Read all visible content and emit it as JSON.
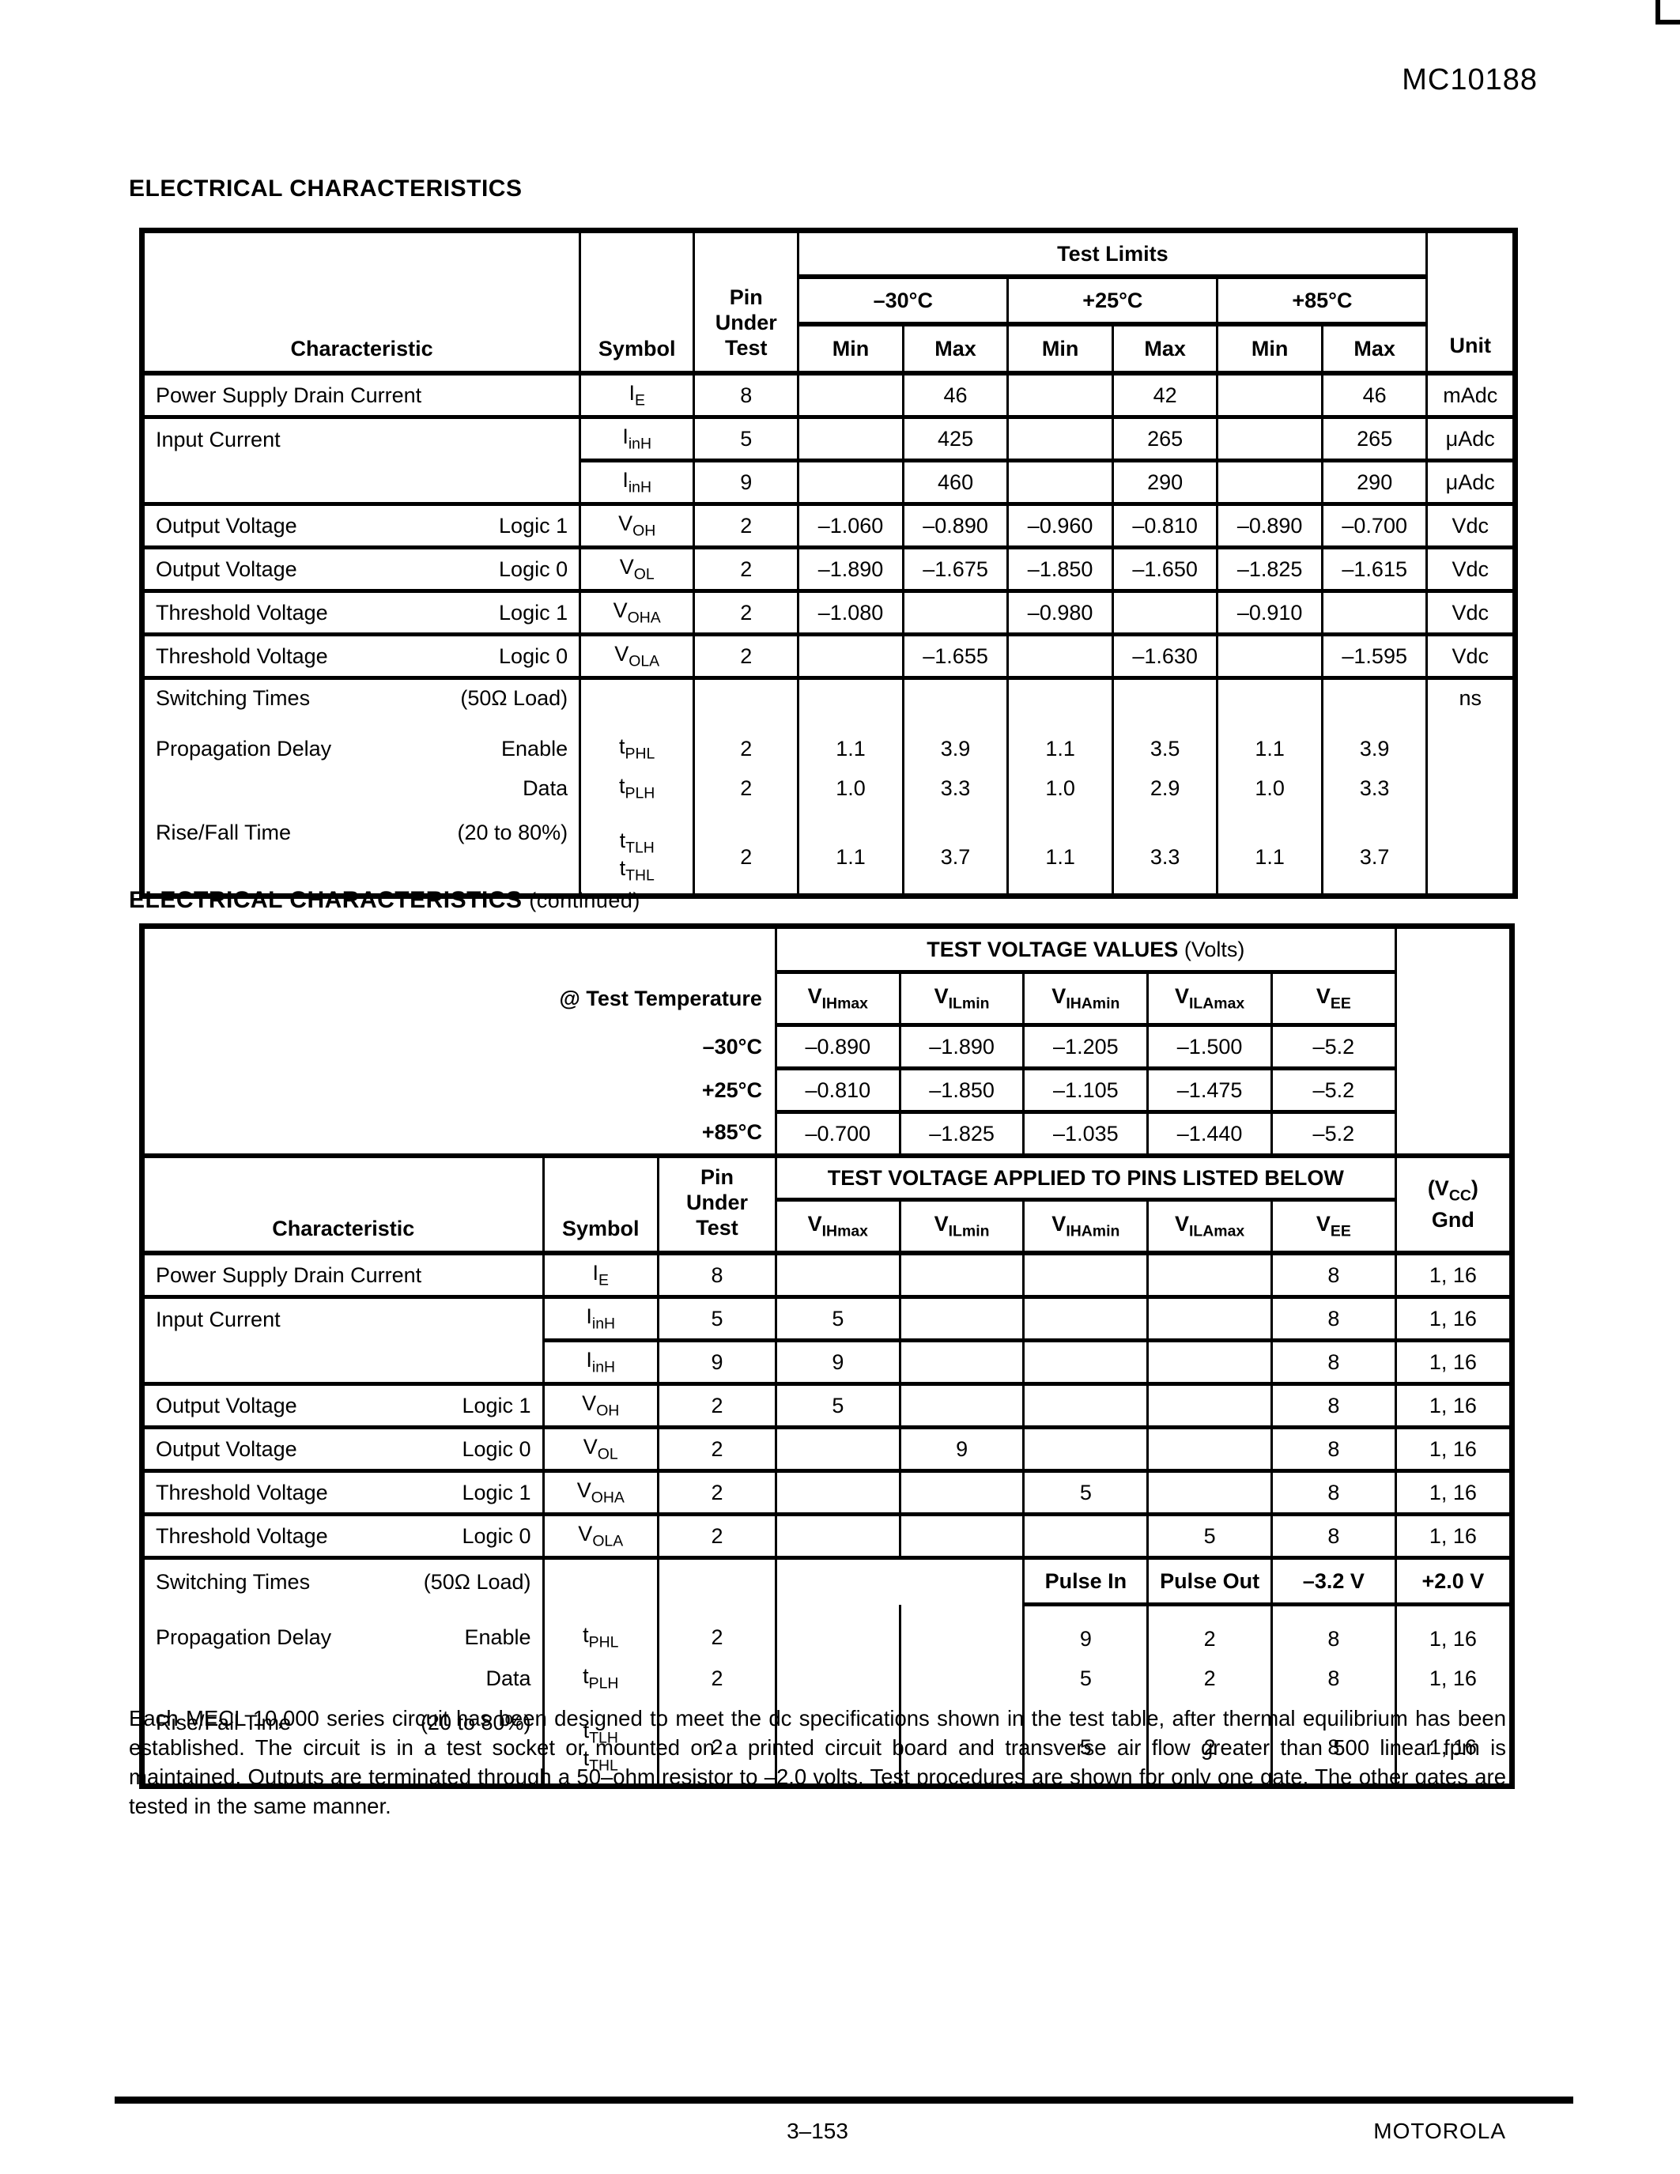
{
  "part_number": "MC10188",
  "s1": {
    "title": "ELECTRICAL CHARACTERISTICS",
    "h": {
      "characteristic": "Characteristic",
      "symbol": "Symbol",
      "pin": [
        "Pin",
        "Under",
        "Test"
      ],
      "limits": "Test Limits",
      "temps": [
        "–30°C",
        "+25°C",
        "+85°C"
      ],
      "mm": [
        "Min",
        "Max",
        "Min",
        "Max",
        "Min",
        "Max"
      ],
      "unit": "Unit"
    },
    "sections": [
      [
        {
          "c": "Power Supply Drain Current",
          "sym": [
            [
              "I",
              "E"
            ]
          ],
          "pin": "8",
          "v": [
            "",
            "46",
            "",
            "42",
            "",
            "46"
          ],
          "u": "mAdc"
        }
      ],
      [
        {
          "c": "Input Current",
          "rowspan": 2,
          "sym": [
            [
              "I",
              "inH"
            ]
          ],
          "pin": "5",
          "v": [
            "",
            "425",
            "",
            "265",
            "",
            "265"
          ],
          "u": "μAdc"
        },
        {
          "skipChar": true,
          "sym": [
            [
              "I",
              "inH"
            ]
          ],
          "pin": "9",
          "v": [
            "",
            "460",
            "",
            "290",
            "",
            "290"
          ],
          "u": "μAdc"
        }
      ],
      [
        {
          "c": "Output Voltage",
          "cond": "Logic 1",
          "sym": [
            [
              "V",
              "OH"
            ]
          ],
          "pin": "2",
          "v": [
            "–1.060",
            "–0.890",
            "–0.960",
            "–0.810",
            "–0.890",
            "–0.700"
          ],
          "u": "Vdc"
        }
      ],
      [
        {
          "c": "Output Voltage",
          "cond": "Logic 0",
          "sym": [
            [
              "V",
              "OL"
            ]
          ],
          "pin": "2",
          "v": [
            "–1.890",
            "–1.675",
            "–1.850",
            "–1.650",
            "–1.825",
            "–1.615"
          ],
          "u": "Vdc"
        }
      ],
      [
        {
          "c": "Threshold Voltage",
          "cond": "Logic 1",
          "sym": [
            [
              "V",
              "OHA"
            ]
          ],
          "pin": "2",
          "v": [
            "–1.080",
            "",
            "–0.980",
            "",
            "–0.910",
            ""
          ],
          "u": "Vdc"
        }
      ],
      [
        {
          "c": "Threshold Voltage",
          "cond": "Logic 0",
          "sym": [
            [
              "V",
              "OLA"
            ]
          ],
          "pin": "2",
          "v": [
            "",
            "–1.655",
            "",
            "–1.630",
            "",
            "–1.595"
          ],
          "u": "Vdc"
        }
      ],
      [
        {
          "c": "Switching Times",
          "cond": "(50Ω Load)",
          "cls": "sw1",
          "sym": [],
          "pin": "",
          "v": [
            "",
            "",
            "",
            "",
            "",
            ""
          ],
          "u": "ns"
        },
        {
          "c": "Propagation Delay",
          "cond": "Enable",
          "cls": "nl gap",
          "sym": [
            [
              "t",
              "PHL"
            ]
          ],
          "pin": "2",
          "v": [
            "1.1",
            "3.9",
            "1.1",
            "3.5",
            "1.1",
            "3.9"
          ],
          "u": ""
        },
        {
          "c": "",
          "cond": "Data",
          "cls": "nl",
          "sym": [
            [
              "t",
              "PLH"
            ]
          ],
          "pin": "2",
          "v": [
            "1.0",
            "3.3",
            "1.0",
            "2.9",
            "1.0",
            "3.3"
          ],
          "u": ""
        },
        {
          "c": "Rise/Fall Time",
          "cond": "(20 to 80%)",
          "cls": "nl gap tall",
          "sym": [
            [
              "t",
              "TLH"
            ],
            [
              "t",
              "THL"
            ]
          ],
          "pin": "2",
          "v": [
            "1.1",
            "3.7",
            "1.1",
            "3.3",
            "1.1",
            "3.7"
          ],
          "u": ""
        }
      ]
    ]
  },
  "s2": {
    "title": "ELECTRICAL CHARACTERISTICS",
    "cont": "(continued)",
    "tvv": {
      "title": "TEST VOLTAGE VALUES",
      "suffix": "(Volts)",
      "at": "@ Test Temperature",
      "v": [
        [
          "V",
          "IHmax"
        ],
        [
          "V",
          "ILmin"
        ],
        [
          "V",
          "IHAmin"
        ],
        [
          "V",
          "ILAmax"
        ],
        [
          "V",
          "EE"
        ]
      ],
      "temps": [
        {
          "t": "–30°C",
          "vals": [
            "–0.890",
            "–1.890",
            "–1.205",
            "–1.500",
            "–5.2"
          ]
        },
        {
          "t": "+25°C",
          "vals": [
            "–0.810",
            "–1.850",
            "–1.105",
            "–1.475",
            "–5.2"
          ]
        },
        {
          "t": "+85°C",
          "vals": [
            "–0.700",
            "–1.825",
            "–1.035",
            "–1.440",
            "–5.2"
          ]
        }
      ]
    },
    "h": {
      "characteristic": "Characteristic",
      "symbol": "Symbol",
      "pin": [
        "Pin",
        "Under",
        "Test"
      ],
      "applied": "TEST VOLTAGE APPLIED TO PINS LISTED BELOW",
      "v": [
        [
          "V",
          "IHmax"
        ],
        [
          "V",
          "ILmin"
        ],
        [
          "V",
          "IHAmin"
        ],
        [
          "V",
          "ILAmax"
        ],
        [
          "V",
          "EE"
        ]
      ],
      "gnd": {
        "pre": "(V",
        "sub": "CC",
        "post": ")",
        "line2": "Gnd"
      }
    },
    "sections": [
      [
        {
          "c": "Power Supply Drain Current",
          "sym": [
            [
              "I",
              "E"
            ]
          ],
          "pin": "8",
          "v": [
            "",
            "",
            "",
            "",
            "8"
          ],
          "g": "1, 16"
        }
      ],
      [
        {
          "c": "Input Current",
          "rowspan": 2,
          "sym": [
            [
              "I",
              "inH"
            ]
          ],
          "pin": "5",
          "v": [
            "5",
            "",
            "",
            "",
            "8"
          ],
          "g": "1, 16"
        },
        {
          "skipChar": true,
          "sym": [
            [
              "I",
              "inH"
            ]
          ],
          "pin": "9",
          "v": [
            "9",
            "",
            "",
            "",
            "8"
          ],
          "g": "1, 16"
        }
      ],
      [
        {
          "c": "Output Voltage",
          "cond": "Logic 1",
          "sym": [
            [
              "V",
              "OH"
            ]
          ],
          "pin": "2",
          "v": [
            "5",
            "",
            "",
            "",
            "8"
          ],
          "g": "1, 16"
        }
      ],
      [
        {
          "c": "Output Voltage",
          "cond": "Logic 0",
          "sym": [
            [
              "V",
              "OL"
            ]
          ],
          "pin": "2",
          "v": [
            "",
            "9",
            "",
            "",
            "8"
          ],
          "g": "1, 16"
        }
      ],
      [
        {
          "c": "Threshold Voltage",
          "cond": "Logic 1",
          "sym": [
            [
              "V",
              "OHA"
            ]
          ],
          "pin": "2",
          "v": [
            "",
            "",
            "5",
            "",
            "8"
          ],
          "g": "1, 16"
        }
      ],
      [
        {
          "c": "Threshold Voltage",
          "cond": "Logic 0",
          "sym": [
            [
              "V",
              "OLA"
            ]
          ],
          "pin": "2",
          "v": [
            "",
            "",
            "",
            "5",
            "8"
          ],
          "g": "1, 16"
        }
      ],
      [
        {
          "c": "Switching Times",
          "cond": "(50Ω Load)",
          "pulse": true,
          "cls": "pulse",
          "pv": [
            "Pulse In",
            "Pulse Out",
            "–3.2 V"
          ],
          "g": "+2.0 V"
        },
        {
          "c": "Propagation Delay",
          "cond": "Enable",
          "cls": "nl gap",
          "sym": [
            [
              "t",
              "PHL"
            ]
          ],
          "pin": "2",
          "v": [
            "",
            "",
            "9",
            "2",
            "8"
          ],
          "g": "1, 16"
        },
        {
          "c": "",
          "cond": "Data",
          "cls": "nl",
          "sym": [
            [
              "t",
              "PLH"
            ]
          ],
          "pin": "2",
          "v": [
            "",
            "",
            "5",
            "2",
            "8"
          ],
          "g": "1, 16"
        },
        {
          "c": "Rise/Fall Time",
          "cond": "(20 to 80%)",
          "cls": "nl gap tall",
          "sym": [
            [
              "t",
              "TLH"
            ],
            [
              "t",
              "THL"
            ]
          ],
          "pin": "2",
          "v": [
            "",
            "",
            "5",
            "2",
            "8"
          ],
          "g": "1, 16"
        }
      ]
    ]
  },
  "footnote": "Each MECL 10,000 series circuit has been designed to meet the dc specifications shown in the test table, after thermal equilibrium has been established. The circuit is in a test socket or mounted on a printed circuit board and transverse air flow greater than 500 linear fpm is maintained. Outputs are terminated through a 50–ohm resistor to –2.0 volts. Test procedures are shown for only one gate. The other gates are tested in the same manner.",
  "footer": {
    "page": "3–153",
    "brand": "MOTOROLA"
  }
}
